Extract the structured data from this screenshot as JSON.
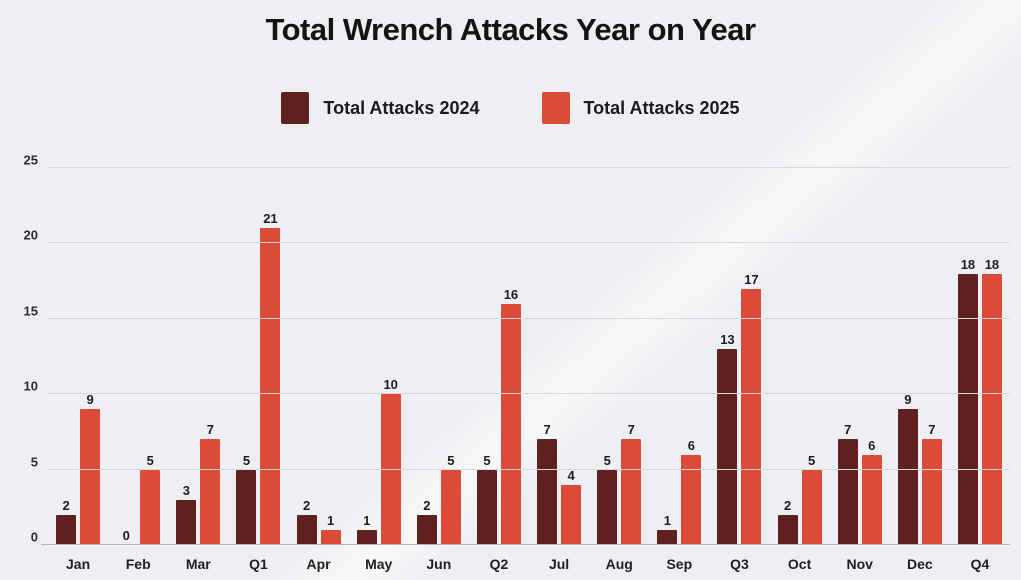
{
  "title": "Total Wrench Attacks Year on Year",
  "legend": {
    "entries": [
      {
        "label": "Total Attacks 2024",
        "color": "#5e2120"
      },
      {
        "label": "Total Attacks 2025",
        "color": "#dc4a3a"
      }
    ]
  },
  "colors": {
    "background": "#edeff2",
    "gridline": "#d6d8dc",
    "baseline": "#b3b6ba",
    "series_2024": "#5e2120",
    "series_2025": "#dc4a3a"
  },
  "chart_data": {
    "type": "bar",
    "title": "Total Wrench Attacks Year on Year",
    "categories": [
      "Jan",
      "Feb",
      "Mar",
      "Q1",
      "Apr",
      "May",
      "Jun",
      "Q2",
      "Jul",
      "Aug",
      "Sep",
      "Q3",
      "Oct",
      "Nov",
      "Dec",
      "Q4"
    ],
    "series": [
      {
        "name": "Total Attacks 2024",
        "color": "#5e2120",
        "values": [
          2,
          0,
          3,
          5,
          2,
          1,
          2,
          5,
          7,
          5,
          1,
          13,
          2,
          7,
          9,
          18
        ]
      },
      {
        "name": "Total Attacks 2025",
        "color": "#dc4a3a",
        "values": [
          9,
          5,
          7,
          21,
          1,
          10,
          5,
          16,
          4,
          7,
          6,
          17,
          5,
          6,
          7,
          18
        ]
      }
    ],
    "xlabel": "",
    "ylabel": "",
    "ylim": [
      0,
      25
    ],
    "yticks": [
      0,
      5,
      10,
      15,
      20,
      25
    ],
    "grid": true,
    "legend_position": "top",
    "value_labels": true
  }
}
